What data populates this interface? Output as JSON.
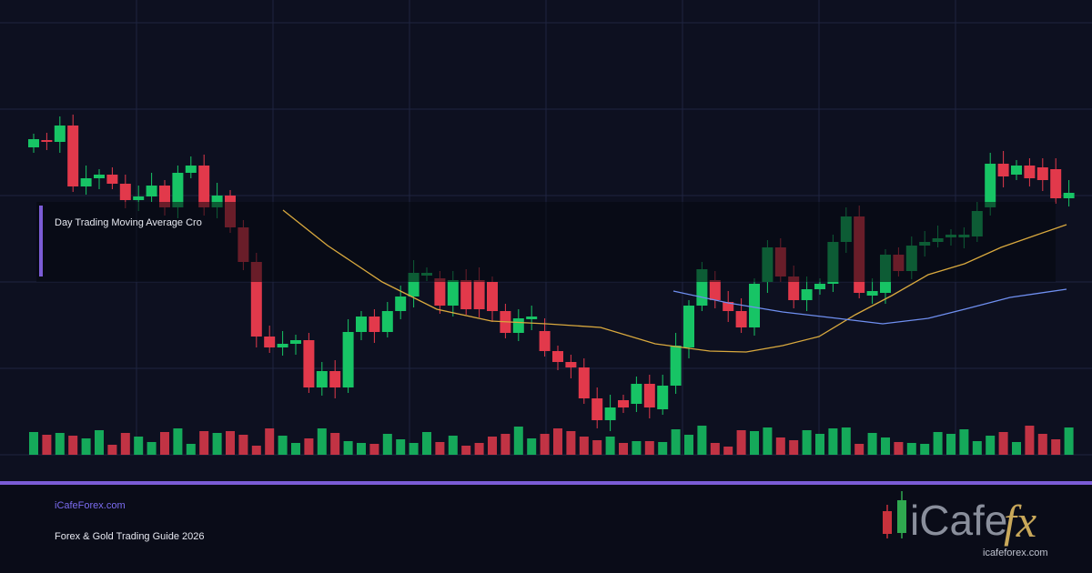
{
  "title": "Day Trading Moving Average Cro",
  "footer": {
    "site": "iCafeForex.com",
    "subtitle": "Forex & Gold Trading Guide 2026"
  },
  "logo": {
    "word": "iCafe",
    "accent": "fx",
    "url": "icafeforex.com"
  }
}
